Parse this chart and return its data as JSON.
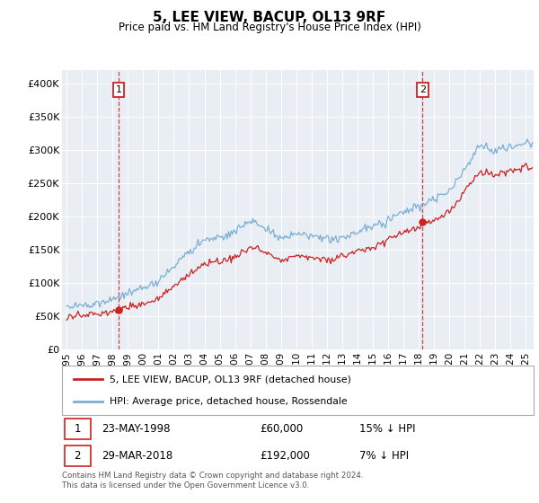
{
  "title": "5, LEE VIEW, BACUP, OL13 9RF",
  "subtitle": "Price paid vs. HM Land Registry's House Price Index (HPI)",
  "ylabel_ticks": [
    "£0",
    "£50K",
    "£100K",
    "£150K",
    "£200K",
    "£250K",
    "£300K",
    "£350K",
    "£400K"
  ],
  "ytick_values": [
    0,
    50000,
    100000,
    150000,
    200000,
    250000,
    300000,
    350000,
    400000
  ],
  "ylim": [
    0,
    420000
  ],
  "sale1_x": 1998.39,
  "sale1_y": 60000,
  "sale2_x": 2018.25,
  "sale2_y": 192000,
  "hpi_color": "#7bafd4",
  "property_color": "#cc2222",
  "dashed_color": "#cc2222",
  "plot_bg_color": "#e8eef4",
  "legend1_label": "5, LEE VIEW, BACUP, OL13 9RF (detached house)",
  "legend2_label": "HPI: Average price, detached house, Rossendale",
  "footnote": "Contains HM Land Registry data © Crown copyright and database right 2024.\nThis data is licensed under the Open Government Licence v3.0.",
  "xlim_start": 1994.7,
  "xlim_end": 2025.5,
  "xticks": [
    1995,
    1996,
    1997,
    1998,
    1999,
    2000,
    2001,
    2002,
    2003,
    2004,
    2005,
    2006,
    2007,
    2008,
    2009,
    2010,
    2011,
    2012,
    2013,
    2014,
    2015,
    2016,
    2017,
    2018,
    2019,
    2020,
    2021,
    2022,
    2023,
    2024,
    2025
  ],
  "hpi_base": {
    "1995": 65000,
    "1996": 67000,
    "1997": 72000,
    "1998": 76000,
    "1999": 84000,
    "2000": 93000,
    "2001": 103000,
    "2002": 125000,
    "2003": 148000,
    "2004": 165000,
    "2005": 170000,
    "2006": 178000,
    "2007": 195000,
    "2008": 183000,
    "2009": 168000,
    "2010": 175000,
    "2011": 170000,
    "2012": 165000,
    "2013": 170000,
    "2014": 178000,
    "2015": 186000,
    "2016": 196000,
    "2017": 207000,
    "2018": 216000,
    "2019": 226000,
    "2020": 237000,
    "2021": 272000,
    "2022": 308000,
    "2023": 298000,
    "2024": 305000,
    "2025": 310000
  },
  "prop_base": {
    "1995": 50000,
    "1996": 52000,
    "1997": 54000,
    "1998": 57000,
    "1999": 63000,
    "2000": 69000,
    "2001": 78000,
    "2002": 95000,
    "2003": 115000,
    "2004": 130000,
    "2005": 133000,
    "2006": 140000,
    "2007": 155000,
    "2008": 147000,
    "2009": 135000,
    "2010": 143000,
    "2011": 138000,
    "2012": 135000,
    "2013": 140000,
    "2014": 148000,
    "2015": 155000,
    "2016": 165000,
    "2017": 175000,
    "2018": 185000,
    "2019": 195000,
    "2020": 205000,
    "2021": 240000,
    "2022": 268000,
    "2023": 260000,
    "2024": 270000,
    "2025": 275000
  }
}
